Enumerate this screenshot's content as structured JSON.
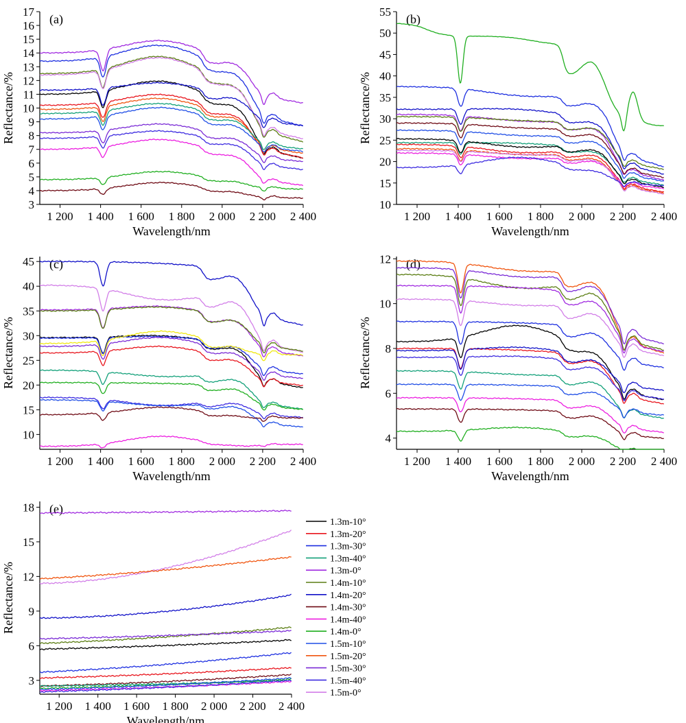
{
  "figure": {
    "legend_entries": [
      {
        "name": "1.3m-10°",
        "color": "#000000"
      },
      {
        "name": "1.3m-20°",
        "color": "#e8141c"
      },
      {
        "name": "1.3m-30°",
        "color": "#1c2ee0"
      },
      {
        "name": "1.3m-40°",
        "color": "#12a079"
      },
      {
        "name": "1.3m-0°",
        "color": "#a02ae0"
      },
      {
        "name": "1.4m-10°",
        "color": "#5a7d12"
      },
      {
        "name": "1.4m-20°",
        "color": "#1010c8"
      },
      {
        "name": "1.4m-30°",
        "color": "#6e0a14"
      },
      {
        "name": "1.4m-40°",
        "color": "#ec1ee0"
      },
      {
        "name": "1.4m-0°",
        "color": "#1fae1f"
      },
      {
        "name": "1.5m-10°",
        "color": "#1f4ee6"
      },
      {
        "name": "1.5m-20°",
        "color": "#f0540e"
      },
      {
        "name": "1.5m-30°",
        "color": "#7a2ad6"
      },
      {
        "name": "1.5m-40°",
        "color": "#3c2ae0"
      },
      {
        "name": "1.5m-0°",
        "color": "#d27ee8"
      }
    ]
  },
  "chart_data": [
    {
      "panel": "(a)",
      "type": "line",
      "xlabel": "Wavelength/nm",
      "ylabel": "Reflectance/%",
      "xlim": [
        1100,
        2400
      ],
      "ylim": [
        3,
        17
      ],
      "xticks": [
        1200,
        1400,
        1600,
        1800,
        2000,
        2200,
        2400
      ],
      "xtick_labels": [
        "1 200",
        "1 400",
        "1 600",
        "1 800",
        "2 000",
        "2 200",
        "2 400"
      ],
      "yticks": [
        3,
        4,
        5,
        6,
        7,
        8,
        9,
        10,
        11,
        12,
        13,
        14,
        15,
        16,
        17
      ],
      "ytick_labels": [
        "3",
        "4",
        "5",
        "6",
        "7",
        "8",
        "9",
        "10",
        "11",
        "12",
        "13",
        "14",
        "15",
        "16",
        "17"
      ],
      "series": [
        {
          "color": "#a02ae0",
          "level": 14.0,
          "drift": 1.0,
          "end": 11.2,
          "shape": "soil"
        },
        {
          "color": "#5a7d12",
          "level": 12.5,
          "drift": 1.4,
          "end": 8.3,
          "shape": "soil"
        },
        {
          "color": "#1c2ee0",
          "level": 13.4,
          "drift": 1.3,
          "end": 9.5,
          "shape": "soil"
        },
        {
          "color": "#d27ee8",
          "level": 12.4,
          "drift": 1.4,
          "end": 8.5,
          "shape": "soil"
        },
        {
          "color": "#000000",
          "level": 11.0,
          "drift": 1.1,
          "end": 7.0,
          "shape": "soil"
        },
        {
          "color": "#1010c8",
          "level": 11.3,
          "drift": 0.6,
          "end": 9.4,
          "shape": "soil"
        },
        {
          "color": "#e8141c",
          "level": 10.2,
          "drift": 0.9,
          "end": 7.0,
          "shape": "soil"
        },
        {
          "color": "#f0540e",
          "level": 9.9,
          "drift": 0.9,
          "end": 7.3,
          "shape": "soil"
        },
        {
          "color": "#12a079",
          "level": 9.6,
          "drift": 0.8,
          "end": 7.6,
          "shape": "soil"
        },
        {
          "color": "#1f4ee6",
          "level": 9.2,
          "drift": 0.9,
          "end": 7.4,
          "shape": "soil"
        },
        {
          "color": "#7a2ad6",
          "level": 8.2,
          "drift": 0.7,
          "end": 6.6,
          "shape": "soil"
        },
        {
          "color": "#3c2ae0",
          "level": 7.8,
          "drift": 0.6,
          "end": 6.0,
          "shape": "soil"
        },
        {
          "color": "#ec1ee0",
          "level": 7.0,
          "drift": 0.8,
          "end": 4.8,
          "shape": "soil"
        },
        {
          "color": "#1fae1f",
          "level": 4.8,
          "drift": 0.6,
          "end": 4.4,
          "shape": "soil"
        },
        {
          "color": "#6e0a14",
          "level": 4.0,
          "drift": 0.6,
          "end": 3.7,
          "shape": "soil"
        }
      ]
    },
    {
      "panel": "(b)",
      "type": "line",
      "xlabel": "Wavelength/nm",
      "ylabel": "Reflectance/%",
      "xlim": [
        1100,
        2400
      ],
      "ylim": [
        10,
        55
      ],
      "xticks": [
        1200,
        1400,
        1600,
        1800,
        2000,
        2200,
        2400
      ],
      "xtick_labels": [
        "1 200",
        "1 400",
        "1 600",
        "1 800",
        "2 000",
        "2 200",
        "2 400"
      ],
      "yticks": [
        10,
        15,
        20,
        25,
        30,
        35,
        40,
        45,
        50,
        55
      ],
      "ytick_labels": [
        "10",
        "15",
        "20",
        "25",
        "30",
        "35",
        "40",
        "45",
        "50",
        "55"
      ],
      "series": [
        {
          "color": "#1fae1f",
          "level": 52.3,
          "drift": -2.0,
          "end": 28.8,
          "shape": "green"
        },
        {
          "color": "#1c2ee0",
          "level": 37.5,
          "drift": -1.5,
          "end": 21.0,
          "shape": "soil"
        },
        {
          "color": "#1010c8",
          "level": 32.2,
          "drift": 0.5,
          "end": 19.0,
          "shape": "soil"
        },
        {
          "color": "#a02ae0",
          "level": 31.0,
          "drift": -1.0,
          "end": 17.5,
          "shape": "soil"
        },
        {
          "color": "#5a7d12",
          "level": 30.5,
          "drift": -0.5,
          "end": 20.0,
          "shape": "soil"
        },
        {
          "color": "#6e0a14",
          "level": 29.0,
          "drift": -0.7,
          "end": 18.0,
          "shape": "soil"
        },
        {
          "color": "#1f4ee6",
          "level": 27.3,
          "drift": -0.8,
          "end": 17.0,
          "shape": "soil"
        },
        {
          "color": "#12a079",
          "level": 24.4,
          "drift": 0.2,
          "end": 16.0,
          "shape": "soil"
        },
        {
          "color": "#000000",
          "level": 25.3,
          "drift": -1.5,
          "end": 15.5,
          "shape": "soil"
        },
        {
          "color": "#e8141c",
          "level": 24.0,
          "drift": -1.5,
          "end": 14.3,
          "shape": "soil"
        },
        {
          "color": "#f0540e",
          "level": 23.0,
          "drift": -1.0,
          "end": 14.0,
          "shape": "soil"
        },
        {
          "color": "#ec1ee0",
          "level": 22.0,
          "drift": -1.0,
          "end": 15.0,
          "shape": "soil"
        },
        {
          "color": "#d27ee8",
          "level": 22.6,
          "drift": -0.6,
          "end": 13.8,
          "shape": "soil"
        },
        {
          "color": "#3c2ae0",
          "level": 18.6,
          "drift": 2.5,
          "end": 15.5,
          "shape": "soil"
        }
      ]
    },
    {
      "panel": "(c)",
      "type": "line",
      "xlabel": "Wavelength/nm",
      "ylabel": "Reflectance/%",
      "xlim": [
        1100,
        2400
      ],
      "ylim": [
        7,
        46
      ],
      "xticks": [
        1200,
        1400,
        1600,
        1800,
        2000,
        2200,
        2400
      ],
      "xtick_labels": [
        "1 200",
        "1 400",
        "1 600",
        "1 800",
        "2 000",
        "2 200",
        "2 400"
      ],
      "yticks": [
        10,
        15,
        20,
        25,
        30,
        35,
        40,
        45
      ],
      "ytick_labels": [
        "10",
        "15",
        "20",
        "25",
        "30",
        "35",
        "40",
        "45"
      ],
      "series": [
        {
          "color": "#1010c8",
          "level": 45.0,
          "drift": 0.0,
          "end": 34.8,
          "shape": "soil"
        },
        {
          "color": "#d27ee8",
          "level": 40.2,
          "drift": -2.5,
          "end": 29.0,
          "shape": "soil"
        },
        {
          "color": "#a02ae0",
          "level": 35.2,
          "drift": 1.0,
          "end": 28.0,
          "shape": "soil"
        },
        {
          "color": "#5a7d12",
          "level": 35.0,
          "drift": 1.0,
          "end": 29.0,
          "shape": "soil"
        },
        {
          "color": "#000000",
          "level": 29.6,
          "drift": 0.7,
          "end": 21.2,
          "shape": "soil"
        },
        {
          "color": "#1c2ee0",
          "level": 29.5,
          "drift": 0.5,
          "end": 24.0,
          "shape": "soil"
        },
        {
          "color": "#f0e812",
          "level": 28.4,
          "drift": 2.5,
          "end": 27.8,
          "shape": "soil"
        },
        {
          "color": "#7a2ad6",
          "level": 27.8,
          "drift": 2.0,
          "end": 23.0,
          "shape": "soil"
        },
        {
          "color": "#e8141c",
          "level": 26.5,
          "drift": 1.5,
          "end": 21.5,
          "shape": "soil"
        },
        {
          "color": "#12a079",
          "level": 23.0,
          "drift": -1.0,
          "end": 16.5,
          "shape": "soil"
        },
        {
          "color": "#1fae1f",
          "level": 20.5,
          "drift": 0.0,
          "end": 16.3,
          "shape": "soil"
        },
        {
          "color": "#3c2ae0",
          "level": 17.5,
          "drift": -1.5,
          "end": 14.5,
          "shape": "soil"
        },
        {
          "color": "#1f4ee6",
          "level": 17.0,
          "drift": -1.0,
          "end": 12.5,
          "shape": "soil"
        },
        {
          "color": "#6e0a14",
          "level": 14.0,
          "drift": 1.5,
          "end": 14.2,
          "shape": "soil"
        },
        {
          "color": "#ec1ee0",
          "level": 7.6,
          "drift": 2.0,
          "end": 8.5,
          "shape": "soil"
        }
      ]
    },
    {
      "panel": "(d)",
      "type": "line",
      "xlabel": "Wavelength/nm",
      "ylabel": "Reflectance/%",
      "xlim": [
        1100,
        2400
      ],
      "ylim": [
        3.5,
        12.1
      ],
      "xticks": [
        1200,
        1400,
        1600,
        1800,
        2000,
        2200,
        2400
      ],
      "xtick_labels": [
        "1 200",
        "1 400",
        "1 600",
        "1 800",
        "2 000",
        "2 200",
        "2 400"
      ],
      "yticks": [
        4,
        6,
        8,
        10,
        12
      ],
      "ytick_labels": [
        "4",
        "6",
        "8",
        "10",
        "12"
      ],
      "series": [
        {
          "color": "#f0540e",
          "level": 11.9,
          "drift": -0.3,
          "end": 8.5,
          "shape": "soil"
        },
        {
          "color": "#7a2ad6",
          "level": 11.6,
          "drift": -0.3,
          "end": 8.9,
          "shape": "soil"
        },
        {
          "color": "#5a7d12",
          "level": 11.3,
          "drift": -0.5,
          "end": 8.6,
          "shape": "soil"
        },
        {
          "color": "#a02ae0",
          "level": 10.8,
          "drift": 0.0,
          "end": 8.5,
          "shape": "soil"
        },
        {
          "color": "#d27ee8",
          "level": 10.2,
          "drift": -0.2,
          "end": 8.3,
          "shape": "soil"
        },
        {
          "color": "#1c2ee0",
          "level": 9.2,
          "drift": 0.0,
          "end": 7.7,
          "shape": "soil"
        },
        {
          "color": "#000000",
          "level": 8.3,
          "drift": 0.8,
          "end": 6.2,
          "shape": "soil"
        },
        {
          "color": "#e8141c",
          "level": 8.0,
          "drift": 0.0,
          "end": 6.0,
          "shape": "soil"
        },
        {
          "color": "#1010c8",
          "level": 7.9,
          "drift": 0.2,
          "end": 6.6,
          "shape": "soil"
        },
        {
          "color": "#3c2ae0",
          "level": 7.6,
          "drift": 0.1,
          "end": 6.2,
          "shape": "soil"
        },
        {
          "color": "#12a079",
          "level": 7.0,
          "drift": -0.1,
          "end": 5.3,
          "shape": "soil"
        },
        {
          "color": "#1f4ee6",
          "level": 6.4,
          "drift": 0.0,
          "end": 5.4,
          "shape": "soil"
        },
        {
          "color": "#ec1ee0",
          "level": 5.8,
          "drift": 0.0,
          "end": 4.6,
          "shape": "soil"
        },
        {
          "color": "#6e0a14",
          "level": 5.3,
          "drift": 0.0,
          "end": 4.3,
          "shape": "soil"
        },
        {
          "color": "#1fae1f",
          "level": 4.3,
          "drift": 0.2,
          "end": 3.6,
          "shape": "soil"
        }
      ]
    },
    {
      "panel": "(e)",
      "type": "line",
      "xlabel": "Wavelength/nm",
      "ylabel": "Reflectance/%",
      "xlim": [
        1100,
        2400
      ],
      "ylim": [
        1.8,
        18.5
      ],
      "xticks": [
        1200,
        1400,
        1600,
        1800,
        2000,
        2200,
        2400
      ],
      "xtick_labels": [
        "1 200",
        "1 400",
        "1 600",
        "1 800",
        "2 000",
        "2 200",
        "2 400"
      ],
      "yticks": [
        3,
        6,
        9,
        12,
        15,
        18
      ],
      "ytick_labels": [
        "3",
        "6",
        "9",
        "12",
        "15",
        "18"
      ],
      "series": [
        {
          "color": "#a02ae0",
          "level": 17.5,
          "drift": 0.0,
          "end": 17.7,
          "shape": "flat"
        },
        {
          "color": "#d27ee8",
          "level": 11.4,
          "drift": 0.0,
          "end": 16.0,
          "shape": "rise"
        },
        {
          "color": "#f0540e",
          "level": 11.8,
          "drift": 0.0,
          "end": 13.7,
          "shape": "flat"
        },
        {
          "color": "#1010c8",
          "level": 8.4,
          "drift": 0.0,
          "end": 10.4,
          "shape": "rise"
        },
        {
          "color": "#5a7d12",
          "level": 6.2,
          "drift": 0.0,
          "end": 7.6,
          "shape": "flat"
        },
        {
          "color": "#7a2ad6",
          "level": 6.6,
          "drift": 0.0,
          "end": 7.3,
          "shape": "flat"
        },
        {
          "color": "#000000",
          "level": 5.7,
          "drift": 0.0,
          "end": 6.5,
          "shape": "flat"
        },
        {
          "color": "#1c2ee0",
          "level": 3.7,
          "drift": 0.0,
          "end": 5.4,
          "shape": "flat"
        },
        {
          "color": "#e8141c",
          "level": 3.2,
          "drift": 0.0,
          "end": 4.1,
          "shape": "flat"
        },
        {
          "color": "#6e0a14",
          "level": 2.5,
          "drift": 0.0,
          "end": 3.5,
          "shape": "flat"
        },
        {
          "color": "#12a079",
          "level": 2.5,
          "drift": 0.0,
          "end": 3.0,
          "shape": "flat"
        },
        {
          "color": "#1fae1f",
          "level": 2.3,
          "drift": 0.0,
          "end": 3.1,
          "shape": "flat"
        },
        {
          "color": "#1f4ee6",
          "level": 2.2,
          "drift": 0.0,
          "end": 3.2,
          "shape": "flat"
        },
        {
          "color": "#ec1ee0",
          "level": 2.1,
          "drift": 0.0,
          "end": 2.9,
          "shape": "flat"
        },
        {
          "color": "#3c2ae0",
          "level": 2.0,
          "drift": 0.0,
          "end": 3.0,
          "shape": "flat"
        }
      ]
    }
  ]
}
